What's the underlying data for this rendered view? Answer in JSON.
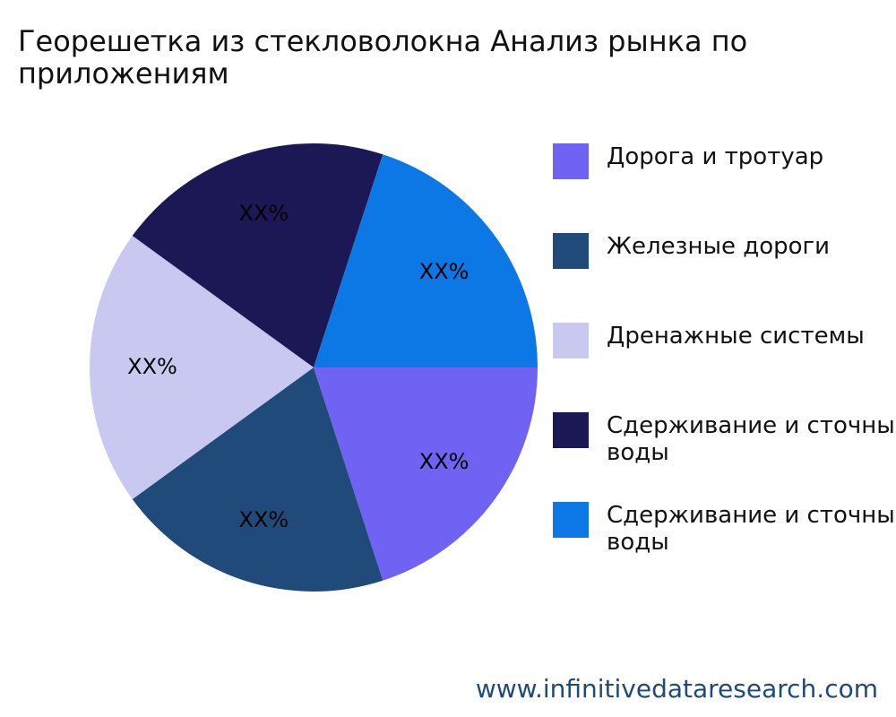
{
  "chart_data": {
    "type": "pie",
    "title": "Георешетка из стекловолокна Анализ рынка по приложениям",
    "categories": [
      "Дорога и тротуар",
      "Железные дороги",
      "Дренажные системы",
      "Сдерживание и сточные воды",
      "Сдерживание и сточные воды"
    ],
    "values": [
      20,
      20,
      20,
      20,
      20
    ],
    "value_labels": [
      "XX%",
      "XX%",
      "XX%",
      "XX%",
      "XX%"
    ],
    "colors": [
      "#7062f2",
      "#1f4a7a",
      "#c8c8f0",
      "#1c1856",
      "#0b78e6"
    ],
    "legend": "right"
  },
  "watermark": "www.infinitivedataresearch.com"
}
